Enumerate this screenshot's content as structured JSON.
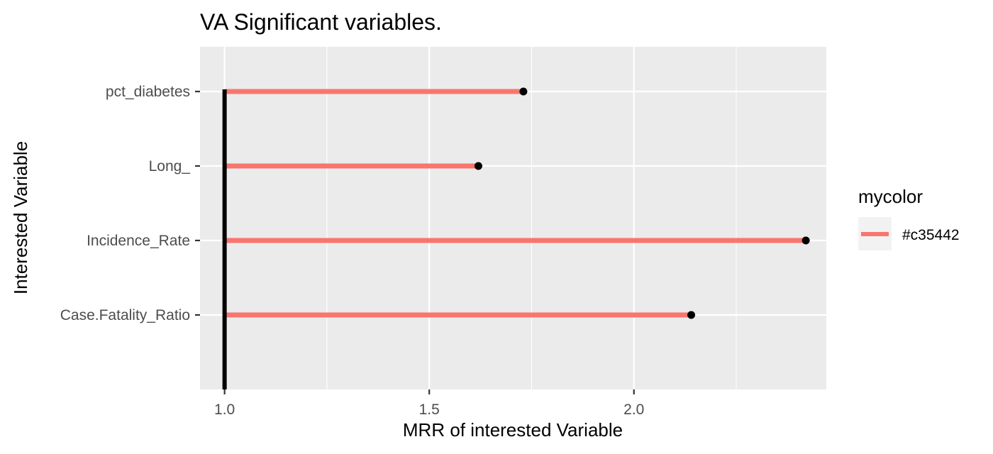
{
  "chart_data": {
    "type": "lollipop",
    "title": "VA Significant variables.",
    "xlabel": "MRR of interested Variable",
    "ylabel": "Interested Variable",
    "categories": [
      "pct_diabetes",
      "Long_",
      "Incidence_Rate",
      "Case.Fatality_Ratio"
    ],
    "values": [
      1.73,
      1.62,
      2.42,
      2.14
    ],
    "baseline": 1.0,
    "xlim": [
      0.94,
      2.47
    ],
    "x_ticks": [
      1.0,
      1.5,
      2.0
    ],
    "x_tick_labels": [
      "1.0",
      "1.5",
      "2.0"
    ],
    "grid": true,
    "legend": {
      "title": "mycolor",
      "placement": "right",
      "entries": [
        {
          "label": "#c35442",
          "color": "#f8766d"
        }
      ]
    },
    "colors": {
      "panel_bg": "#ebebeb",
      "gridline": "#ffffff",
      "segment": "#f8766d",
      "point": "#000000",
      "baseline": "#000000"
    }
  }
}
